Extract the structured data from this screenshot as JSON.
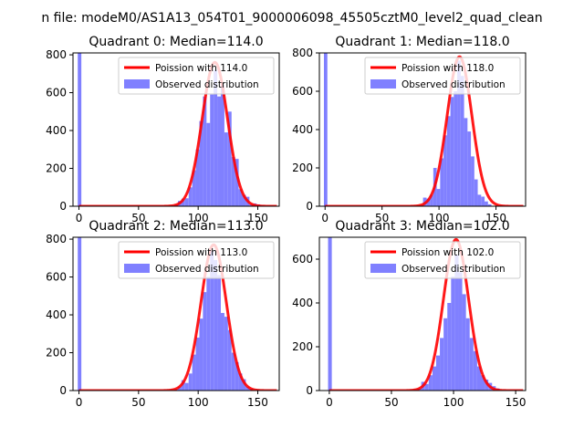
{
  "figure": {
    "suptitle": "n file: modeM0/AS1A13_054T01_9000006098_45505cztM0_level2_quad_clean"
  },
  "colors": {
    "poisson_line": "#ff0000",
    "observed_bars": "#8080ff",
    "axes": "#000000",
    "legend_border": "#cccccc"
  },
  "chart_data": [
    {
      "type": "bar",
      "title": "Quadrant 0: Median=114.0",
      "xlim": [
        -5,
        168
      ],
      "ylim": [
        0,
        810
      ],
      "xticks": [
        0,
        50,
        100,
        150
      ],
      "yticks": [
        0,
        200,
        400,
        600,
        800
      ],
      "legend": {
        "position": "top-right",
        "entries": [
          "Poission with 114.0",
          "Observed distribution"
        ]
      },
      "poisson_mean": 114.0,
      "poisson_peak": 760,
      "bins": [
        {
          "x0": -1,
          "x1": 2,
          "value": 810
        },
        {
          "x0": 80,
          "x1": 83,
          "value": 10
        },
        {
          "x0": 83,
          "x1": 86,
          "value": 28
        },
        {
          "x0": 86,
          "x1": 89,
          "value": 40
        },
        {
          "x0": 89,
          "x1": 92,
          "value": 42
        },
        {
          "x0": 92,
          "x1": 95,
          "value": 100
        },
        {
          "x0": 95,
          "x1": 98,
          "value": 190
        },
        {
          "x0": 98,
          "x1": 101,
          "value": 300
        },
        {
          "x0": 101,
          "x1": 104,
          "value": 450
        },
        {
          "x0": 104,
          "x1": 107,
          "value": 580
        },
        {
          "x0": 107,
          "x1": 110,
          "value": 440
        },
        {
          "x0": 110,
          "x1": 113,
          "value": 590
        },
        {
          "x0": 113,
          "x1": 116,
          "value": 720
        },
        {
          "x0": 116,
          "x1": 119,
          "value": 580
        },
        {
          "x0": 119,
          "x1": 122,
          "value": 640
        },
        {
          "x0": 122,
          "x1": 125,
          "value": 390
        },
        {
          "x0": 125,
          "x1": 128,
          "value": 500
        },
        {
          "x0": 128,
          "x1": 131,
          "value": 260
        },
        {
          "x0": 131,
          "x1": 134,
          "value": 250
        },
        {
          "x0": 134,
          "x1": 137,
          "value": 90
        },
        {
          "x0": 137,
          "x1": 140,
          "value": 60
        },
        {
          "x0": 140,
          "x1": 143,
          "value": 50
        },
        {
          "x0": 143,
          "x1": 146,
          "value": 10
        },
        {
          "x0": 146,
          "x1": 149,
          "value": 15
        },
        {
          "x0": 149,
          "x1": 152,
          "value": 10
        },
        {
          "x0": 152,
          "x1": 155,
          "value": 5
        }
      ]
    },
    {
      "type": "bar",
      "title": "Quadrant 1: Median=118.0",
      "xlim": [
        -5,
        176
      ],
      "ylim": [
        0,
        800
      ],
      "xticks": [
        0,
        50,
        100,
        150
      ],
      "yticks": [
        0,
        200,
        400,
        600,
        800
      ],
      "legend": {
        "position": "top-right",
        "entries": [
          "Poission with 118.0",
          "Observed distribution"
        ]
      },
      "poisson_mean": 118.0,
      "poisson_peak": 780,
      "bins": [
        {
          "x0": -1,
          "x1": 2,
          "value": 800
        },
        {
          "x0": 83,
          "x1": 86,
          "value": 5
        },
        {
          "x0": 86,
          "x1": 89,
          "value": 45
        },
        {
          "x0": 89,
          "x1": 92,
          "value": 40
        },
        {
          "x0": 92,
          "x1": 95,
          "value": 60
        },
        {
          "x0": 95,
          "x1": 98,
          "value": 200
        },
        {
          "x0": 98,
          "x1": 101,
          "value": 90
        },
        {
          "x0": 101,
          "x1": 104,
          "value": 250
        },
        {
          "x0": 104,
          "x1": 107,
          "value": 370
        },
        {
          "x0": 107,
          "x1": 110,
          "value": 470
        },
        {
          "x0": 110,
          "x1": 113,
          "value": 570
        },
        {
          "x0": 113,
          "x1": 116,
          "value": 600
        },
        {
          "x0": 116,
          "x1": 119,
          "value": 760
        },
        {
          "x0": 119,
          "x1": 122,
          "value": 680
        },
        {
          "x0": 122,
          "x1": 125,
          "value": 460
        },
        {
          "x0": 125,
          "x1": 128,
          "value": 390
        },
        {
          "x0": 128,
          "x1": 131,
          "value": 260
        },
        {
          "x0": 131,
          "x1": 134,
          "value": 140
        },
        {
          "x0": 134,
          "x1": 137,
          "value": 60
        },
        {
          "x0": 137,
          "x1": 140,
          "value": 50
        },
        {
          "x0": 140,
          "x1": 143,
          "value": 25
        },
        {
          "x0": 143,
          "x1": 146,
          "value": 10
        }
      ]
    },
    {
      "type": "bar",
      "title": "Quadrant 2: Median=113.0",
      "xlim": [
        -5,
        168
      ],
      "ylim": [
        0,
        810
      ],
      "xticks": [
        0,
        50,
        100,
        150
      ],
      "yticks": [
        0,
        200,
        400,
        600,
        800
      ],
      "legend": {
        "position": "top-right",
        "entries": [
          "Poission with 113.0",
          "Observed distribution"
        ]
      },
      "poisson_mean": 113.0,
      "poisson_peak": 770,
      "bins": [
        {
          "x0": -1,
          "x1": 2,
          "value": 810
        },
        {
          "x0": 80,
          "x1": 83,
          "value": 5
        },
        {
          "x0": 83,
          "x1": 86,
          "value": 20
        },
        {
          "x0": 86,
          "x1": 89,
          "value": 55
        },
        {
          "x0": 89,
          "x1": 92,
          "value": 40
        },
        {
          "x0": 92,
          "x1": 95,
          "value": 90
        },
        {
          "x0": 95,
          "x1": 98,
          "value": 190
        },
        {
          "x0": 98,
          "x1": 101,
          "value": 280
        },
        {
          "x0": 101,
          "x1": 104,
          "value": 380
        },
        {
          "x0": 104,
          "x1": 107,
          "value": 520
        },
        {
          "x0": 107,
          "x1": 110,
          "value": 600
        },
        {
          "x0": 110,
          "x1": 113,
          "value": 740
        },
        {
          "x0": 113,
          "x1": 116,
          "value": 690
        },
        {
          "x0": 116,
          "x1": 119,
          "value": 610
        },
        {
          "x0": 119,
          "x1": 122,
          "value": 410
        },
        {
          "x0": 122,
          "x1": 125,
          "value": 390
        },
        {
          "x0": 125,
          "x1": 128,
          "value": 320
        },
        {
          "x0": 128,
          "x1": 131,
          "value": 200
        },
        {
          "x0": 131,
          "x1": 134,
          "value": 150
        },
        {
          "x0": 134,
          "x1": 137,
          "value": 90
        },
        {
          "x0": 137,
          "x1": 140,
          "value": 60
        },
        {
          "x0": 140,
          "x1": 143,
          "value": 20
        },
        {
          "x0": 143,
          "x1": 146,
          "value": 10
        }
      ]
    },
    {
      "type": "bar",
      "title": "Quadrant 3: Median=102.0",
      "xlim": [
        -8,
        158
      ],
      "ylim": [
        0,
        700
      ],
      "xticks": [
        0,
        50,
        100,
        150
      ],
      "yticks": [
        0,
        200,
        400,
        600
      ],
      "legend": {
        "position": "top-right",
        "entries": [
          "Poission with 102.0",
          "Observed distribution"
        ]
      },
      "poisson_mean": 102.0,
      "poisson_peak": 690,
      "bins": [
        {
          "x0": -1,
          "x1": 2,
          "value": 700
        },
        {
          "x0": 68,
          "x1": 71,
          "value": 5
        },
        {
          "x0": 71,
          "x1": 74,
          "value": 10
        },
        {
          "x0": 74,
          "x1": 77,
          "value": 40
        },
        {
          "x0": 77,
          "x1": 80,
          "value": 30
        },
        {
          "x0": 80,
          "x1": 83,
          "value": 70
        },
        {
          "x0": 83,
          "x1": 86,
          "value": 110
        },
        {
          "x0": 86,
          "x1": 89,
          "value": 160
        },
        {
          "x0": 89,
          "x1": 92,
          "value": 240
        },
        {
          "x0": 92,
          "x1": 95,
          "value": 330
        },
        {
          "x0": 95,
          "x1": 98,
          "value": 400
        },
        {
          "x0": 98,
          "x1": 101,
          "value": 520
        },
        {
          "x0": 101,
          "x1": 104,
          "value": 620
        },
        {
          "x0": 104,
          "x1": 107,
          "value": 540
        },
        {
          "x0": 107,
          "x1": 110,
          "value": 440
        },
        {
          "x0": 110,
          "x1": 113,
          "value": 330
        },
        {
          "x0": 113,
          "x1": 116,
          "value": 240
        },
        {
          "x0": 116,
          "x1": 119,
          "value": 180
        },
        {
          "x0": 119,
          "x1": 122,
          "value": 110
        },
        {
          "x0": 122,
          "x1": 125,
          "value": 70
        },
        {
          "x0": 125,
          "x1": 128,
          "value": 50
        },
        {
          "x0": 128,
          "x1": 131,
          "value": 35
        },
        {
          "x0": 131,
          "x1": 134,
          "value": 20
        },
        {
          "x0": 134,
          "x1": 137,
          "value": 10
        }
      ]
    }
  ]
}
